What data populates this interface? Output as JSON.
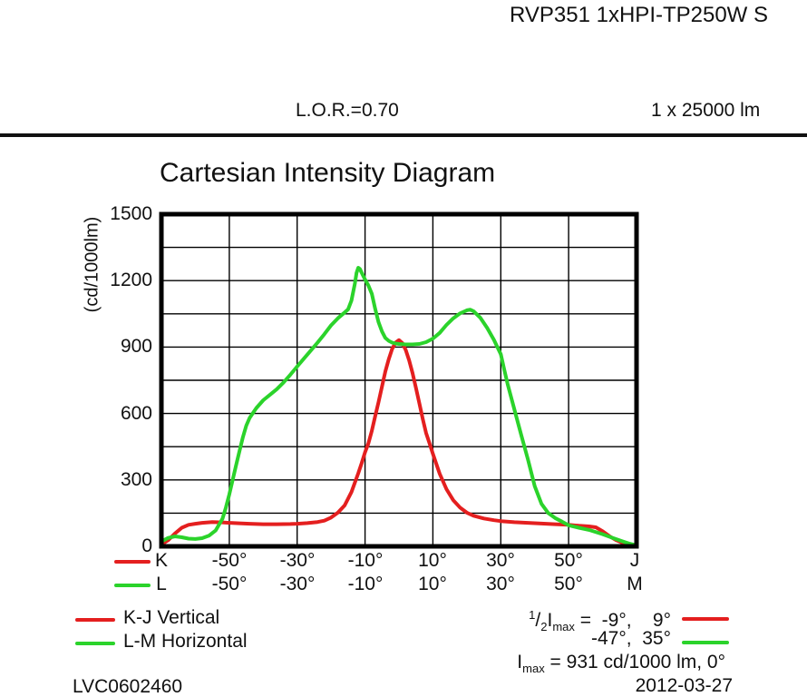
{
  "header": {
    "title": "RVP351 1xHPI-TP250W S",
    "lor": "L.O.R.=0.70",
    "flux": "1 x 25000 lm"
  },
  "chart_data": {
    "type": "line",
    "title": "Cartesian Intensity Diagram",
    "ylabel": "(cd/1000lm)",
    "xlim": [
      -70,
      70
    ],
    "ylim": [
      0,
      1500
    ],
    "x_grid_degrees": [
      -50,
      -30,
      -10,
      10,
      30,
      50
    ],
    "y_major_ticks": [
      0,
      300,
      600,
      900,
      1200,
      1500
    ],
    "y_grid_step": 150,
    "grid": "on",
    "series": [
      {
        "name": "K-J Vertical",
        "color": "#e41f1f",
        "points": [
          [
            -70,
            8
          ],
          [
            -68,
            28
          ],
          [
            -66,
            58
          ],
          [
            -64,
            84
          ],
          [
            -62,
            97
          ],
          [
            -60,
            102
          ],
          [
            -58,
            106
          ],
          [
            -55,
            110
          ],
          [
            -52,
            108
          ],
          [
            -50,
            106
          ],
          [
            -47,
            104
          ],
          [
            -44,
            102
          ],
          [
            -40,
            100
          ],
          [
            -36,
            100
          ],
          [
            -32,
            101
          ],
          [
            -30,
            102
          ],
          [
            -27,
            105
          ],
          [
            -24,
            110
          ],
          [
            -22,
            116
          ],
          [
            -20,
            130
          ],
          [
            -18,
            152
          ],
          [
            -16,
            185
          ],
          [
            -14,
            245
          ],
          [
            -12,
            330
          ],
          [
            -11,
            375
          ],
          [
            -10,
            425
          ],
          [
            -9,
            465
          ],
          [
            -8,
            522
          ],
          [
            -7,
            588
          ],
          [
            -6,
            652
          ],
          [
            -5,
            722
          ],
          [
            -4,
            790
          ],
          [
            -3,
            846
          ],
          [
            -2,
            892
          ],
          [
            -1,
            920
          ],
          [
            0,
            931
          ],
          [
            1,
            918
          ],
          [
            2,
            886
          ],
          [
            3,
            840
          ],
          [
            4,
            782
          ],
          [
            5,
            716
          ],
          [
            6,
            646
          ],
          [
            7,
            576
          ],
          [
            8,
            512
          ],
          [
            9,
            465
          ],
          [
            10,
            418
          ],
          [
            11,
            372
          ],
          [
            12,
            328
          ],
          [
            14,
            258
          ],
          [
            16,
            208
          ],
          [
            18,
            175
          ],
          [
            20,
            152
          ],
          [
            22,
            138
          ],
          [
            25,
            126
          ],
          [
            28,
            118
          ],
          [
            30,
            114
          ],
          [
            34,
            109
          ],
          [
            38,
            106
          ],
          [
            42,
            103
          ],
          [
            46,
            100
          ],
          [
            50,
            97
          ],
          [
            53,
            93
          ],
          [
            56,
            90
          ],
          [
            58,
            86
          ],
          [
            60,
            68
          ],
          [
            62,
            46
          ],
          [
            64,
            28
          ],
          [
            66,
            15
          ],
          [
            68,
            9
          ],
          [
            70,
            6
          ]
        ]
      },
      {
        "name": "L-M Horizontal",
        "color": "#2bd32b",
        "points": [
          [
            -70,
            22
          ],
          [
            -68,
            38
          ],
          [
            -66,
            45
          ],
          [
            -64,
            41
          ],
          [
            -62,
            35
          ],
          [
            -60,
            33
          ],
          [
            -58,
            37
          ],
          [
            -56,
            48
          ],
          [
            -54,
            72
          ],
          [
            -52,
            125
          ],
          [
            -51,
            175
          ],
          [
            -50,
            235
          ],
          [
            -49,
            300
          ],
          [
            -48,
            365
          ],
          [
            -47,
            430
          ],
          [
            -46,
            492
          ],
          [
            -45,
            545
          ],
          [
            -44,
            580
          ],
          [
            -43,
            603
          ],
          [
            -42,
            625
          ],
          [
            -40,
            660
          ],
          [
            -38,
            685
          ],
          [
            -36,
            710
          ],
          [
            -34,
            740
          ],
          [
            -32,
            775
          ],
          [
            -30,
            812
          ],
          [
            -28,
            848
          ],
          [
            -26,
            884
          ],
          [
            -24,
            920
          ],
          [
            -22,
            958
          ],
          [
            -20,
            998
          ],
          [
            -18,
            1030
          ],
          [
            -16,
            1056
          ],
          [
            -15,
            1070
          ],
          [
            -14,
            1110
          ],
          [
            -13,
            1185
          ],
          [
            -12.5,
            1235
          ],
          [
            -12,
            1258
          ],
          [
            -11.5,
            1252
          ],
          [
            -11,
            1236
          ],
          [
            -10,
            1205
          ],
          [
            -9,
            1178
          ],
          [
            -8,
            1140
          ],
          [
            -7,
            1072
          ],
          [
            -6,
            1012
          ],
          [
            -5,
            970
          ],
          [
            -4,
            941
          ],
          [
            -3,
            928
          ],
          [
            -2,
            920
          ],
          [
            -1,
            916
          ],
          [
            0,
            914
          ],
          [
            2,
            912
          ],
          [
            4,
            912
          ],
          [
            6,
            914
          ],
          [
            8,
            922
          ],
          [
            10,
            938
          ],
          [
            12,
            964
          ],
          [
            14,
            1000
          ],
          [
            16,
            1030
          ],
          [
            18,
            1052
          ],
          [
            20,
            1066
          ],
          [
            21,
            1069
          ],
          [
            22,
            1062
          ],
          [
            24,
            1032
          ],
          [
            26,
            986
          ],
          [
            28,
            932
          ],
          [
            29,
            900
          ],
          [
            30,
            868
          ],
          [
            31,
            800
          ],
          [
            32,
            733
          ],
          [
            34,
            618
          ],
          [
            36,
            505
          ],
          [
            38,
            393
          ],
          [
            40,
            272
          ],
          [
            42,
            192
          ],
          [
            44,
            150
          ],
          [
            46,
            128
          ],
          [
            48,
            112
          ],
          [
            50,
            95
          ],
          [
            53,
            84
          ],
          [
            56,
            74
          ],
          [
            60,
            55
          ],
          [
            63,
            38
          ],
          [
            66,
            22
          ],
          [
            68,
            12
          ],
          [
            70,
            4
          ]
        ]
      }
    ]
  },
  "x_axis": {
    "tick_labels": [
      "-50°",
      "-30°",
      "-10°",
      "10°",
      "30°",
      "50°"
    ],
    "rows": [
      {
        "plane_start": "K",
        "plane_end": "J",
        "series_index": 0
      },
      {
        "plane_start": "L",
        "plane_end": "M",
        "series_index": 1
      }
    ]
  },
  "legend": {
    "items": [
      {
        "label": "K-J Vertical",
        "series_index": 0
      },
      {
        "label": "L-M Horizontal",
        "series_index": 1
      }
    ]
  },
  "stats": {
    "frac_num": "1",
    "frac_slash": "/",
    "frac_den": "2",
    "i_symbol": "I",
    "max_sub": "max",
    "kj_values": " =  -9°,    9°",
    "lm_values": "-47°,  35°",
    "imax_rest": " = 931 cd/1000 lm, 0°",
    "date": "2012-03-27"
  },
  "footer": {
    "code": "LVC0602460"
  }
}
